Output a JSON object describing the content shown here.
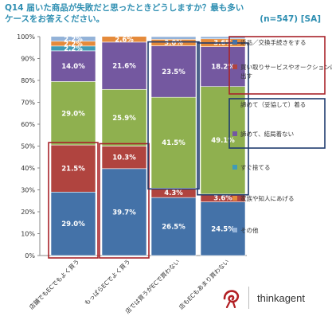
{
  "title_line1": "Q14 届いた商品が失敗だと思ったときどうしますか？最も多い",
  "title_line2": "ケースをお答えください。",
  "sample_note": "(n=547) [SA]",
  "brand": "thinkagent",
  "chart_data": {
    "type": "bar",
    "stacked": true,
    "ylim": [
      0,
      100
    ],
    "yticks": [
      "0%",
      "10%",
      "20%",
      "30%",
      "40%",
      "50%",
      "60%",
      "70%",
      "80%",
      "90%",
      "100%"
    ],
    "categories": [
      "店舗でもECでもよく買う",
      "もっぱらECでよく買う",
      "店では買うがECで買わない",
      "店もECもあまり買わない"
    ],
    "series": [
      {
        "name": "返品／交換手続きをする",
        "color": "#4472a8",
        "values": [
          29.0,
          39.7,
          26.5,
          24.5
        ],
        "labels": [
          "29.0%",
          "39.7%",
          "26.5%",
          "24.5%"
        ]
      },
      {
        "name": "買い取りサービスやオークションに出す",
        "color": "#b0443f",
        "values": [
          21.5,
          10.3,
          4.3,
          3.6
        ],
        "labels": [
          "21.5%",
          "10.3%",
          "4.3%",
          "3.6%"
        ]
      },
      {
        "name": "諦めて（妥協して）着る",
        "color": "#8fb04f",
        "values": [
          29.0,
          25.9,
          41.5,
          49.1
        ],
        "labels": [
          "29.0%",
          "25.9%",
          "41.5%",
          "49.1%"
        ]
      },
      {
        "name": "諦めて、結局着ない",
        "color": "#7458a0",
        "values": [
          14.0,
          21.6,
          23.5,
          18.2
        ],
        "labels": [
          "14.0%",
          "21.6%",
          "23.5%",
          "18.2%"
        ]
      },
      {
        "name": "すぐ捨てる",
        "color": "#3f9bb7",
        "values": [
          2.2,
          0.0,
          0.0,
          0.0
        ],
        "labels": [
          "2.2%",
          "",
          "",
          ""
        ]
      },
      {
        "name": "家族や知人にあげる",
        "color": "#e58a3a",
        "values": [
          2.2,
          2.6,
          3.0,
          3.6
        ],
        "labels": [
          "2.2%",
          "2.6%",
          "3.0%",
          "3.6%"
        ]
      },
      {
        "name": "その他",
        "color": "#93b2d8",
        "values": [
          2.2,
          0.0,
          1.2,
          1.0
        ],
        "labels": [
          "2.2%",
          "",
          "",
          ""
        ]
      }
    ],
    "highlight_color_red": "#a8232a",
    "highlight_color_blue": "#1f3b6e"
  }
}
